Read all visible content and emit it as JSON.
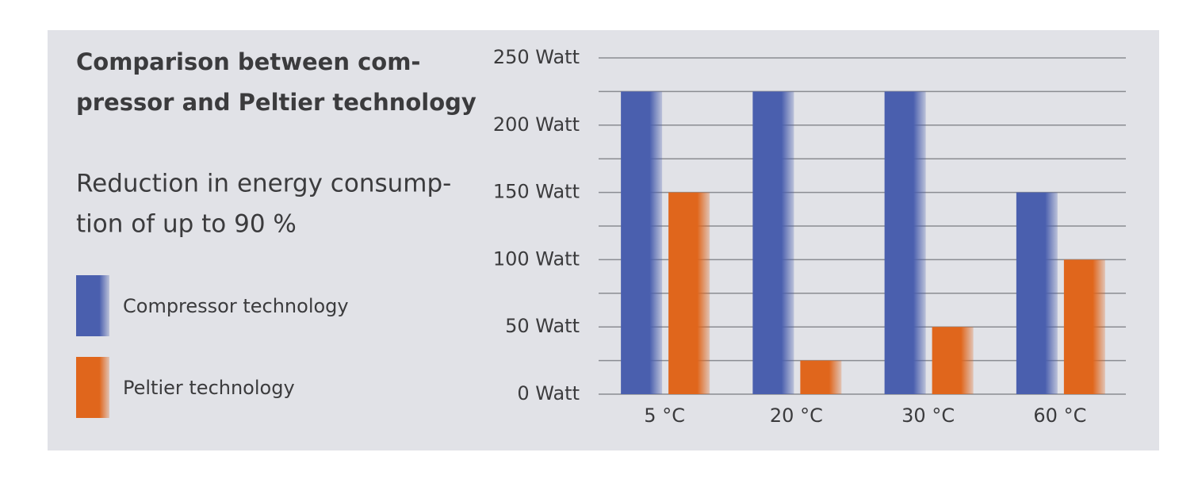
{
  "chart_data": {
    "type": "bar",
    "title": [
      "Comparison between com-",
      "pressor and Peltier technology"
    ],
    "subtitle": [
      "Reduction in energy consump-",
      "tion of up to 90 %"
    ],
    "categories": [
      "5 °C",
      "20 °C",
      "30 °C",
      "60 °C"
    ],
    "series": [
      {
        "name": "Compressor technology",
        "color": "#4a5fae",
        "values": [
          225,
          225,
          225,
          150
        ]
      },
      {
        "name": "Peltier technology",
        "color": "#e0661c",
        "values": [
          150,
          25,
          50,
          100
        ]
      }
    ],
    "ylim": [
      0,
      250
    ],
    "yticks": [
      {
        "value": 0,
        "label": "0 Watt"
      },
      {
        "value": 50,
        "label": "50 Watt"
      },
      {
        "value": 100,
        "label": "100 Watt"
      },
      {
        "value": 150,
        "label": "150 Watt"
      },
      {
        "value": 200,
        "label": "200 Watt"
      },
      {
        "value": 250,
        "label": "250 Watt"
      }
    ],
    "minor_yticks": [
      25,
      75,
      125,
      175,
      225
    ],
    "grid": true
  }
}
